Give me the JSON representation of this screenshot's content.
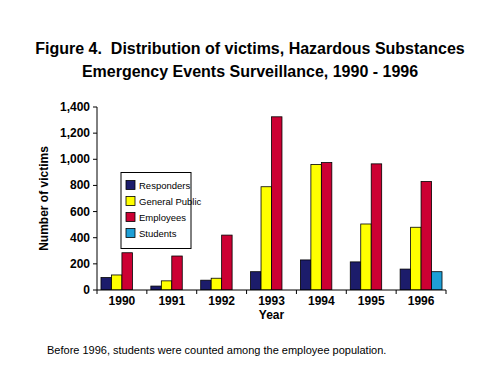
{
  "chart_data": {
    "type": "bar",
    "title": "Figure 4.  Distribution of victims, Hazardous Substances\nEmergency Events Surveillance, 1990 - 1996",
    "x_label": "Year",
    "y_label": "Number of victims",
    "annotations": [
      "Before 1996, students were counted among the employee population."
    ],
    "categories": [
      "1990",
      "1991",
      "1992",
      "1993",
      "1994",
      "1995",
      "1996"
    ],
    "series": [
      {
        "name": "Responders",
        "color": "#1c1c6b",
        "values": [
          95,
          30,
          75,
          140,
          230,
          215,
          160
        ]
      },
      {
        "name": "General Public",
        "color": "#ffff00",
        "values": [
          115,
          70,
          90,
          790,
          960,
          505,
          480
        ]
      },
      {
        "name": "Employees",
        "color": "#cc0033",
        "values": [
          285,
          260,
          420,
          1325,
          975,
          965,
          830
        ]
      },
      {
        "name": "Students",
        "color": "#1e9fd6",
        "values": [
          null,
          null,
          null,
          null,
          null,
          null,
          140
        ]
      }
    ],
    "ylim": [
      0,
      1400
    ],
    "yticks": [
      0,
      200,
      400,
      600,
      800,
      {
        "value": 1000,
        "label": "1,000"
      },
      {
        "value": 1200,
        "label": "1,200"
      },
      {
        "value": 1400,
        "label": "1,400"
      }
    ],
    "grid": false,
    "legend": "center left",
    "data_labels": false
  }
}
